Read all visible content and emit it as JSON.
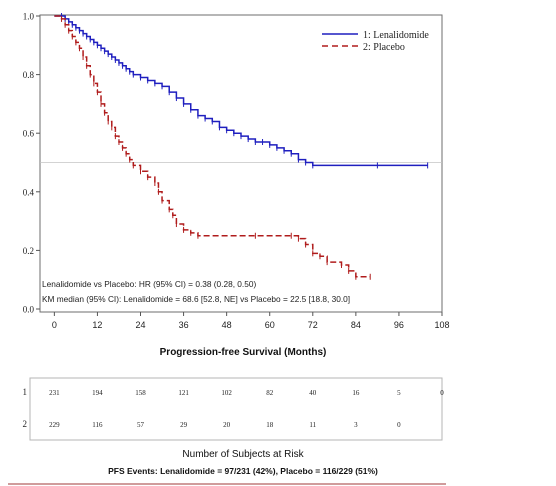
{
  "chart_data": {
    "type": "line",
    "title": "",
    "xlabel": "Progression-free Survival  (Months)",
    "ylabel": "",
    "xlim": [
      -4,
      108
    ],
    "ylim": [
      0,
      1
    ],
    "x_ticks": [
      "0",
      "12",
      "24",
      "36",
      "48",
      "60",
      "72",
      "84",
      "96",
      "108"
    ],
    "y_ticks": [
      "0.0",
      "0.2",
      "0.4",
      "0.6",
      "0.8",
      "1.0"
    ],
    "reference_line": 0.5,
    "legend_position": "top-right",
    "series": [
      {
        "name": "1: Lenalidomide",
        "color": "#1f1fbf",
        "style": "solid",
        "points": [
          [
            0,
            1.0
          ],
          [
            2,
            1.0
          ],
          [
            3,
            0.99
          ],
          [
            4,
            0.98
          ],
          [
            5,
            0.97
          ],
          [
            6,
            0.96
          ],
          [
            7,
            0.95
          ],
          [
            8,
            0.94
          ],
          [
            9,
            0.93
          ],
          [
            10,
            0.92
          ],
          [
            11,
            0.91
          ],
          [
            12,
            0.9
          ],
          [
            13,
            0.89
          ],
          [
            14,
            0.88
          ],
          [
            15,
            0.87
          ],
          [
            16,
            0.86
          ],
          [
            17,
            0.85
          ],
          [
            18,
            0.84
          ],
          [
            19,
            0.83
          ],
          [
            20,
            0.82
          ],
          [
            21,
            0.81
          ],
          [
            22,
            0.8
          ],
          [
            24,
            0.79
          ],
          [
            26,
            0.78
          ],
          [
            28,
            0.77
          ],
          [
            30,
            0.76
          ],
          [
            32,
            0.74
          ],
          [
            34,
            0.72
          ],
          [
            36,
            0.7
          ],
          [
            38,
            0.68
          ],
          [
            40,
            0.66
          ],
          [
            42,
            0.65
          ],
          [
            44,
            0.64
          ],
          [
            46,
            0.62
          ],
          [
            48,
            0.61
          ],
          [
            50,
            0.6
          ],
          [
            52,
            0.59
          ],
          [
            54,
            0.58
          ],
          [
            56,
            0.57
          ],
          [
            58,
            0.57
          ],
          [
            60,
            0.56
          ],
          [
            62,
            0.55
          ],
          [
            64,
            0.54
          ],
          [
            66,
            0.53
          ],
          [
            68,
            0.51
          ],
          [
            70,
            0.5
          ],
          [
            72,
            0.49
          ],
          [
            90,
            0.49
          ],
          [
            104,
            0.49
          ]
        ]
      },
      {
        "name": "2: Placebo",
        "color": "#b01c1c",
        "style": "dashed",
        "points": [
          [
            0,
            1.0
          ],
          [
            2,
            0.99
          ],
          [
            3,
            0.97
          ],
          [
            4,
            0.95
          ],
          [
            5,
            0.93
          ],
          [
            6,
            0.91
          ],
          [
            7,
            0.89
          ],
          [
            8,
            0.86
          ],
          [
            9,
            0.83
          ],
          [
            10,
            0.8
          ],
          [
            11,
            0.77
          ],
          [
            12,
            0.74
          ],
          [
            13,
            0.7
          ],
          [
            14,
            0.67
          ],
          [
            15,
            0.64
          ],
          [
            16,
            0.62
          ],
          [
            17,
            0.59
          ],
          [
            18,
            0.57
          ],
          [
            19,
            0.55
          ],
          [
            20,
            0.53
          ],
          [
            21,
            0.51
          ],
          [
            22,
            0.49
          ],
          [
            24,
            0.47
          ],
          [
            26,
            0.45
          ],
          [
            28,
            0.43
          ],
          [
            29,
            0.4
          ],
          [
            30,
            0.37
          ],
          [
            32,
            0.34
          ],
          [
            33,
            0.32
          ],
          [
            34,
            0.29
          ],
          [
            36,
            0.27
          ],
          [
            38,
            0.26
          ],
          [
            40,
            0.25
          ],
          [
            56,
            0.25
          ],
          [
            66,
            0.25
          ],
          [
            68,
            0.24
          ],
          [
            70,
            0.22
          ],
          [
            72,
            0.19
          ],
          [
            74,
            0.18
          ],
          [
            76,
            0.16
          ],
          [
            80,
            0.15
          ],
          [
            82,
            0.13
          ],
          [
            84,
            0.11
          ],
          [
            88,
            0.11
          ]
        ]
      }
    ],
    "annotations": [
      "Lenalidomide vs Placebo: HR (95% CI) = 0.38 (0.28, 0.50)",
      "KM median (95% CI): Lenalidomide = 68.6 [52.8, NE] vs Placebo = 22.5 [18.8, 30.0]"
    ]
  },
  "risk_table": {
    "title": "Number of Subjects at Risk",
    "rows": [
      {
        "label": "1",
        "values": [
          "231",
          "194",
          "158",
          "121",
          "102",
          "82",
          "40",
          "16",
          "5",
          "0"
        ]
      },
      {
        "label": "2",
        "values": [
          "229",
          "116",
          "57",
          "29",
          "20",
          "18",
          "11",
          "3",
          "0"
        ]
      }
    ],
    "footer": "PFS Events: Lenalidomide  = 97/231 (42%), Placebo = 116/229 (51%)"
  }
}
